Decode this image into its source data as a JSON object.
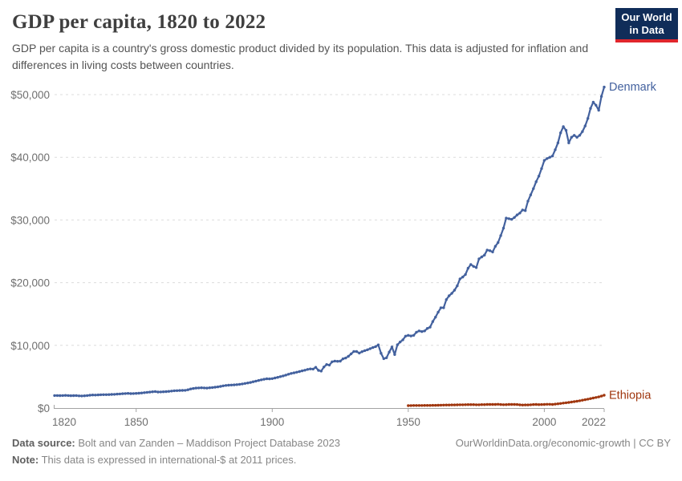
{
  "header": {
    "title": "GDP per capita, 1820 to 2022",
    "subtitle": "GDP per capita is a country's gross domestic product divided by its population. This data is adjusted for inflation and differences in living costs between countries.",
    "logo": {
      "line1": "Our World",
      "line2": "in Data",
      "bg_color": "#102d59",
      "accent_color": "#e0262c"
    }
  },
  "footer": {
    "source_label": "Data source:",
    "source_text": " Bolt and van Zanden – Maddison Project Database 2023",
    "note_label": "Note:",
    "note_text": " This data is expressed in international-$ at 2011 prices.",
    "attribution": "OurWorldinData.org/economic-growth | CC BY"
  },
  "chart_data": {
    "type": "line",
    "title": "GDP per capita, 1820 to 2022",
    "xlabel": "",
    "ylabel": "",
    "x_range": [
      1820,
      2022
    ],
    "y_range": [
      0,
      50000
    ],
    "grid": "horizontal-dashed",
    "legend_position": "end-of-line-labels",
    "colors": {
      "grid": "#dcdcdc",
      "axis": "#a3a3a3",
      "tick_text": "#6f6f6f"
    },
    "y_ticks": [
      {
        "value": 0,
        "label": "$0"
      },
      {
        "value": 10000,
        "label": "$10,000"
      },
      {
        "value": 20000,
        "label": "$20,000"
      },
      {
        "value": 30000,
        "label": "$30,000"
      },
      {
        "value": 40000,
        "label": "$40,000"
      },
      {
        "value": 50000,
        "label": "$50,000"
      }
    ],
    "x_ticks": [
      {
        "value": 1820,
        "label": "1820"
      },
      {
        "value": 1850,
        "label": "1850"
      },
      {
        "value": 1900,
        "label": "1900"
      },
      {
        "value": 1950,
        "label": "1950"
      },
      {
        "value": 2000,
        "label": "2000"
      },
      {
        "value": 2022,
        "label": "2022"
      }
    ],
    "series": [
      {
        "name": "Denmark",
        "color": "#43619e",
        "start_year": 1820,
        "values": [
          2000,
          1990,
          1980,
          2000,
          2015,
          2000,
          1965,
          1980,
          2000,
          1950,
          1935,
          1960,
          2000,
          2040,
          2090,
          2075,
          2100,
          2120,
          2140,
          2130,
          2150,
          2170,
          2190,
          2220,
          2250,
          2290,
          2320,
          2340,
          2300,
          2320,
          2340,
          2370,
          2410,
          2450,
          2500,
          2540,
          2600,
          2630,
          2560,
          2570,
          2590,
          2620,
          2660,
          2710,
          2760,
          2780,
          2800,
          2810,
          2830,
          2920,
          3040,
          3120,
          3180,
          3210,
          3240,
          3210,
          3190,
          3230,
          3270,
          3320,
          3380,
          3450,
          3540,
          3600,
          3650,
          3670,
          3700,
          3740,
          3790,
          3850,
          3920,
          4000,
          4080,
          4190,
          4300,
          4400,
          4500,
          4590,
          4670,
          4650,
          4690,
          4790,
          4900,
          5010,
          5130,
          5260,
          5400,
          5520,
          5620,
          5720,
          5820,
          5930,
          6030,
          6170,
          6240,
          6210,
          6500,
          6010,
          5890,
          6550,
          6940,
          6860,
          7380,
          7500,
          7450,
          7480,
          7850,
          7980,
          8250,
          8640,
          9030,
          9010,
          8770,
          8990,
          9160,
          9300,
          9480,
          9660,
          9800,
          10080,
          8730,
          7880,
          8020,
          8920,
          9740,
          8530,
          10090,
          10540,
          10880,
          11470,
          11600,
          11500,
          11600,
          12100,
          12300,
          12200,
          12300,
          12700,
          12900,
          13800,
          14500,
          15300,
          16000,
          16000,
          17300,
          17900,
          18300,
          18800,
          19500,
          20600,
          20900,
          21300,
          22300,
          22900,
          22600,
          22400,
          23800,
          24100,
          24400,
          25200,
          25100,
          24900,
          25800,
          26400,
          27500,
          28700,
          30300,
          30200,
          30100,
          30400,
          30800,
          31100,
          31600,
          31500,
          33000,
          34000,
          35000,
          36100,
          37000,
          38200,
          39500,
          39800,
          40000,
          40200,
          41200,
          42300,
          43900,
          44900,
          44300,
          42300,
          43200,
          43500,
          43200,
          43500,
          44100,
          45000,
          46200,
          47800,
          48800,
          48300,
          47500,
          49700,
          51200
        ]
      },
      {
        "name": "Ethiopia",
        "color": "#a0370f",
        "start_year": 1950,
        "values": [
          390,
          400,
          405,
          410,
          405,
          415,
          420,
          425,
          420,
          430,
          440,
          450,
          465,
          475,
          485,
          490,
          495,
          500,
          510,
          520,
          530,
          540,
          545,
          550,
          545,
          520,
          530,
          545,
          550,
          575,
          580,
          575,
          580,
          595,
          560,
          535,
          555,
          580,
          580,
          570,
          560,
          510,
          480,
          500,
          505,
          520,
          560,
          570,
          555,
          565,
          580,
          600,
          595,
          580,
          630,
          680,
          730,
          790,
          850,
          900,
          960,
          1020,
          1090,
          1170,
          1250,
          1330,
          1420,
          1510,
          1600,
          1690,
          1780,
          1900,
          2040
        ]
      }
    ]
  }
}
